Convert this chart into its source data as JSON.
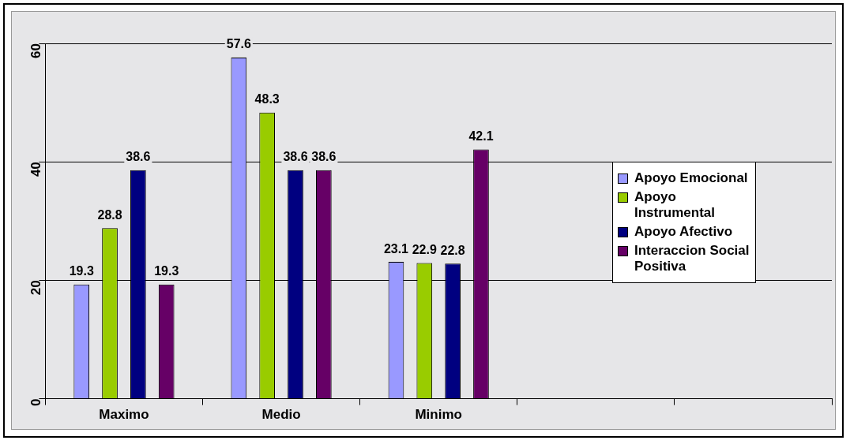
{
  "chart_data": {
    "type": "bar",
    "categories": [
      "Maximo",
      "Medio",
      "Minimo",
      null,
      null
    ],
    "series": [
      {
        "name": "Apoyo Emocional",
        "color": "#9999ff",
        "values": [
          19.3,
          57.6,
          23.1,
          null,
          null
        ]
      },
      {
        "name": "Apoyo Instrumental",
        "color": "#99cc00",
        "values": [
          28.8,
          48.3,
          22.9,
          null,
          null
        ]
      },
      {
        "name": "Apoyo Afectivo",
        "color": "#000080",
        "values": [
          38.6,
          38.6,
          22.8,
          null,
          null
        ]
      },
      {
        "name": "Interaccion Social Positiva",
        "color": "#660066",
        "values": [
          19.3,
          38.6,
          42.1,
          null,
          null
        ]
      }
    ],
    "ylim": [
      0,
      60
    ],
    "yticks": [
      0,
      20,
      40,
      60
    ],
    "grid": "y",
    "legend": "right",
    "data_labels": true
  }
}
